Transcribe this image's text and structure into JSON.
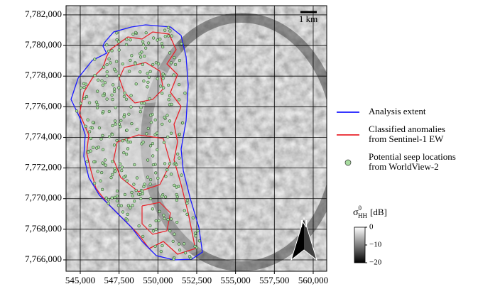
{
  "map": {
    "xlim": [
      544086,
      560870
    ],
    "ylim": [
      7765258,
      7782600
    ],
    "xticks": [
      {
        "value": 545000,
        "label": "545,000"
      },
      {
        "value": 547500,
        "label": "547,500"
      },
      {
        "value": 550000,
        "label": "550,000"
      },
      {
        "value": 552500,
        "label": "552,500"
      },
      {
        "value": 555000,
        "label": "555,000"
      },
      {
        "value": 557500,
        "label": "557,500"
      },
      {
        "value": 560000,
        "label": "560,000"
      }
    ],
    "yticks": [
      {
        "value": 7766000,
        "label": "7,766,000"
      },
      {
        "value": 7768000,
        "label": "7,768,000"
      },
      {
        "value": 7770000,
        "label": "7,770,000"
      },
      {
        "value": 7772000,
        "label": "7,772,000"
      },
      {
        "value": 7774000,
        "label": "7,774,000"
      },
      {
        "value": 7776000,
        "label": "7,776,000"
      },
      {
        "value": 7778000,
        "label": "7,778,000"
      },
      {
        "value": 7780000,
        "label": "7,780,000"
      },
      {
        "value": 7782000,
        "label": "7,782,000"
      }
    ],
    "grid": true,
    "scale_bar": "1 km",
    "north": "N",
    "legend": [
      {
        "label": [
          "Analysis extent"
        ],
        "marker": "line",
        "color": "#1a1aff"
      },
      {
        "label": [
          "Classified anomalies",
          "from Sentinel-1 EW"
        ],
        "marker": "line",
        "color": "#e8222a"
      },
      {
        "label": [
          "Potential seep locations",
          "from WorldView-2"
        ],
        "marker": "circle",
        "color": "#a8dca0"
      }
    ],
    "colorbar": {
      "symbol": "σ",
      "superscript": "0",
      "subscript": "HH",
      "unit": "[dB]",
      "lim": [
        -20,
        0
      ],
      "ticks": [
        {
          "value": 0,
          "label": "0"
        },
        {
          "value": -10,
          "label": "−10"
        },
        {
          "value": -20,
          "label": "−20"
        }
      ]
    }
  }
}
